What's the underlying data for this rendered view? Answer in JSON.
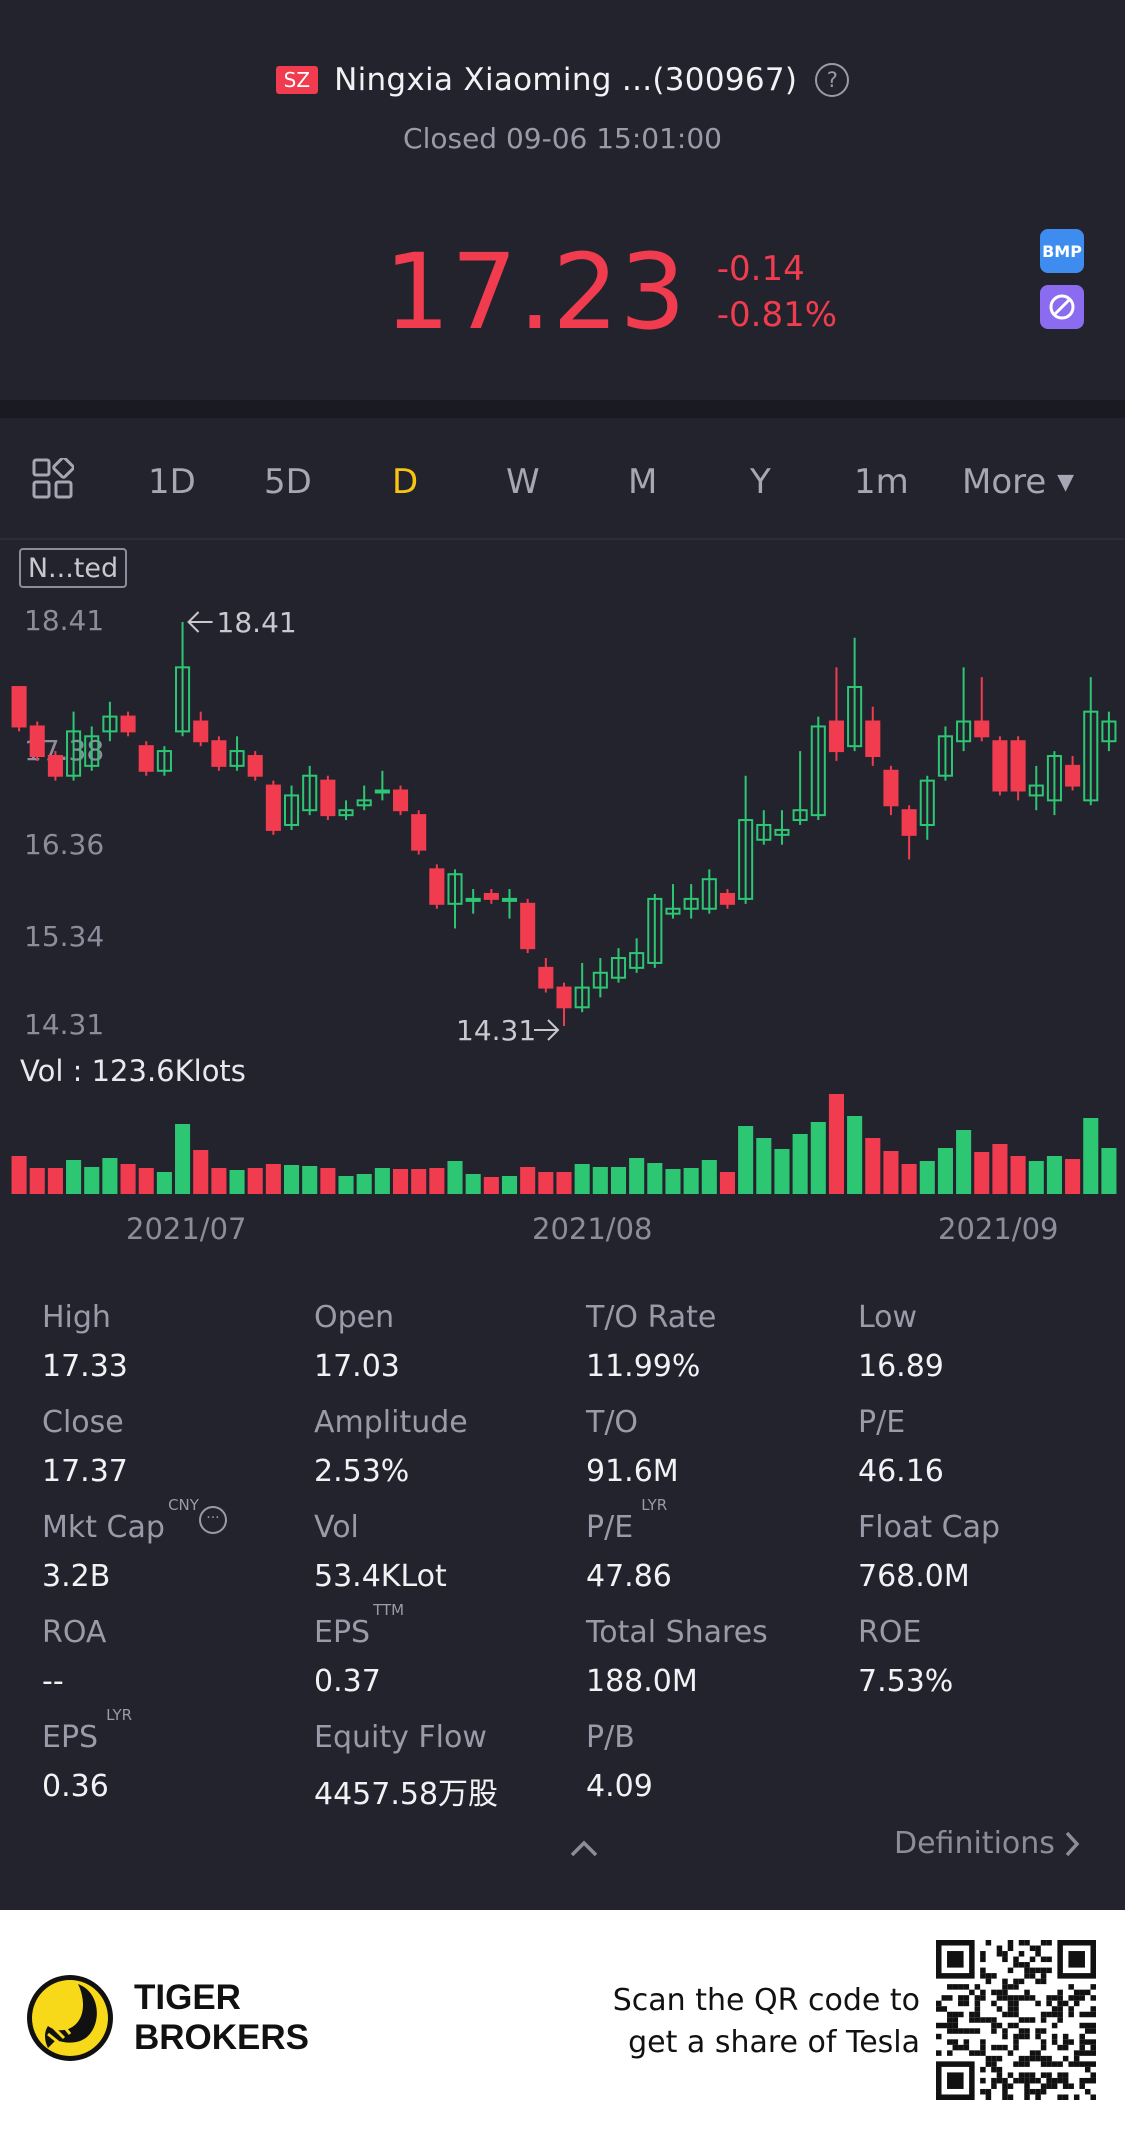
{
  "header": {
    "exchange_badge": "SZ",
    "stock_name": "Ningxia Xiaoming ...(300967)",
    "status": "Closed 09-06 15:01:00",
    "price": "17.23",
    "change": "-0.14",
    "change_pct": "-0.81%",
    "side_icon_1": "BMP",
    "accent_down_color": "#f03c4e",
    "accent_up_color": "#2dc774"
  },
  "tabs": {
    "items": [
      "1D",
      "5D",
      "D",
      "W",
      "M",
      "Y",
      "1m"
    ],
    "active": "D",
    "more": "More"
  },
  "chart": {
    "indicator_badge": "N...ted",
    "y_ticks": [
      "18.41",
      "17.38",
      "16.36",
      "15.34",
      "14.31"
    ],
    "high_marker": "18.41",
    "low_marker": "14.31",
    "volume_label": "Vol  : 123.6Klots",
    "dates": [
      "2021/07",
      "2021/08",
      "2021/09"
    ]
  },
  "chart_data": {
    "type": "candlestick",
    "y_range": [
      14.31,
      18.41
    ],
    "candles": [
      {
        "o": 17.75,
        "c": 17.35,
        "h": 17.75,
        "l": 17.3
      },
      {
        "o": 17.35,
        "c": 17.05,
        "h": 17.4,
        "l": 17.0
      },
      {
        "o": 17.05,
        "c": 16.85,
        "h": 17.1,
        "l": 16.8
      },
      {
        "o": 16.85,
        "c": 17.3,
        "h": 17.5,
        "l": 16.8
      },
      {
        "o": 16.95,
        "c": 17.25,
        "h": 17.35,
        "l": 16.9
      },
      {
        "o": 17.3,
        "c": 17.45,
        "h": 17.6,
        "l": 17.2
      },
      {
        "o": 17.45,
        "c": 17.3,
        "h": 17.5,
        "l": 17.25
      },
      {
        "o": 17.15,
        "c": 16.9,
        "h": 17.2,
        "l": 16.85
      },
      {
        "o": 16.9,
        "c": 17.1,
        "h": 17.15,
        "l": 16.85
      },
      {
        "o": 17.3,
        "c": 17.95,
        "h": 18.41,
        "l": 17.25
      },
      {
        "o": 17.4,
        "c": 17.2,
        "h": 17.5,
        "l": 17.15
      },
      {
        "o": 17.2,
        "c": 16.95,
        "h": 17.25,
        "l": 16.9
      },
      {
        "o": 16.95,
        "c": 17.1,
        "h": 17.25,
        "l": 16.9
      },
      {
        "o": 17.05,
        "c": 16.85,
        "h": 17.1,
        "l": 16.8
      },
      {
        "o": 16.75,
        "c": 16.3,
        "h": 16.8,
        "l": 16.25
      },
      {
        "o": 16.35,
        "c": 16.65,
        "h": 16.75,
        "l": 16.3
      },
      {
        "o": 16.5,
        "c": 16.85,
        "h": 16.95,
        "l": 16.45
      },
      {
        "o": 16.8,
        "c": 16.45,
        "h": 16.85,
        "l": 16.4
      },
      {
        "o": 16.45,
        "c": 16.5,
        "h": 16.6,
        "l": 16.4
      },
      {
        "o": 16.55,
        "c": 16.6,
        "h": 16.75,
        "l": 16.5
      },
      {
        "o": 16.7,
        "c": 16.7,
        "h": 16.9,
        "l": 16.6
      },
      {
        "o": 16.7,
        "c": 16.5,
        "h": 16.75,
        "l": 16.45
      },
      {
        "o": 16.45,
        "c": 16.1,
        "h": 16.5,
        "l": 16.05
      },
      {
        "o": 15.9,
        "c": 15.55,
        "h": 15.95,
        "l": 15.5
      },
      {
        "o": 15.55,
        "c": 15.85,
        "h": 15.9,
        "l": 15.3
      },
      {
        "o": 15.6,
        "c": 15.6,
        "h": 15.7,
        "l": 15.45
      },
      {
        "o": 15.65,
        "c": 15.6,
        "h": 15.7,
        "l": 15.55
      },
      {
        "o": 15.6,
        "c": 15.6,
        "h": 15.7,
        "l": 15.4
      },
      {
        "o": 15.55,
        "c": 15.1,
        "h": 15.6,
        "l": 15.05
      },
      {
        "o": 14.9,
        "c": 14.7,
        "h": 15.0,
        "l": 14.65
      },
      {
        "o": 14.7,
        "c": 14.5,
        "h": 14.75,
        "l": 14.31
      },
      {
        "o": 14.5,
        "c": 14.7,
        "h": 14.95,
        "l": 14.45
      },
      {
        "o": 14.7,
        "c": 14.85,
        "h": 15.0,
        "l": 14.6
      },
      {
        "o": 14.8,
        "c": 15.0,
        "h": 15.1,
        "l": 14.75
      },
      {
        "o": 14.9,
        "c": 15.05,
        "h": 15.2,
        "l": 14.85
      },
      {
        "o": 14.95,
        "c": 15.6,
        "h": 15.65,
        "l": 14.9
      },
      {
        "o": 15.45,
        "c": 15.5,
        "h": 15.75,
        "l": 15.4
      },
      {
        "o": 15.5,
        "c": 15.6,
        "h": 15.75,
        "l": 15.4
      },
      {
        "o": 15.5,
        "c": 15.8,
        "h": 15.9,
        "l": 15.45
      },
      {
        "o": 15.65,
        "c": 15.55,
        "h": 15.7,
        "l": 15.5
      },
      {
        "o": 15.6,
        "c": 16.4,
        "h": 16.85,
        "l": 15.55
      },
      {
        "o": 16.2,
        "c": 16.35,
        "h": 16.5,
        "l": 16.15
      },
      {
        "o": 16.25,
        "c": 16.3,
        "h": 16.5,
        "l": 16.15
      },
      {
        "o": 16.4,
        "c": 16.5,
        "h": 17.1,
        "l": 16.35
      },
      {
        "o": 16.45,
        "c": 17.35,
        "h": 17.45,
        "l": 16.4
      },
      {
        "o": 17.4,
        "c": 17.1,
        "h": 17.95,
        "l": 17.0
      },
      {
        "o": 17.15,
        "c": 17.75,
        "h": 18.25,
        "l": 17.1
      },
      {
        "o": 17.4,
        "c": 17.05,
        "h": 17.55,
        "l": 16.95
      },
      {
        "o": 16.9,
        "c": 16.55,
        "h": 16.95,
        "l": 16.45
      },
      {
        "o": 16.5,
        "c": 16.25,
        "h": 16.55,
        "l": 16.0
      },
      {
        "o": 16.35,
        "c": 16.8,
        "h": 16.85,
        "l": 16.2
      },
      {
        "o": 16.85,
        "c": 17.25,
        "h": 17.35,
        "l": 16.8
      },
      {
        "o": 17.2,
        "c": 17.4,
        "h": 17.95,
        "l": 17.1
      },
      {
        "o": 17.4,
        "c": 17.25,
        "h": 17.85,
        "l": 17.2
      },
      {
        "o": 17.2,
        "c": 16.7,
        "h": 17.25,
        "l": 16.65
      },
      {
        "o": 17.2,
        "c": 16.7,
        "h": 17.25,
        "l": 16.6
      },
      {
        "o": 16.65,
        "c": 16.75,
        "h": 16.95,
        "l": 16.5
      },
      {
        "o": 16.6,
        "c": 17.05,
        "h": 17.1,
        "l": 16.45
      },
      {
        "o": 16.95,
        "c": 16.75,
        "h": 17.05,
        "l": 16.7
      },
      {
        "o": 16.6,
        "c": 17.5,
        "h": 17.85,
        "l": 16.55
      },
      {
        "o": 17.2,
        "c": 17.4,
        "h": 17.5,
        "l": 17.1
      }
    ],
    "volume_max": 123.6
  },
  "stats": [
    {
      "label": "High",
      "value": "17.33",
      "sup": ""
    },
    {
      "label": "Open",
      "value": "17.03",
      "sup": ""
    },
    {
      "label": "T/O Rate",
      "value": "11.99%",
      "sup": ""
    },
    {
      "label": "Low",
      "value": "16.89",
      "sup": ""
    },
    {
      "label": "Close",
      "value": "17.37",
      "sup": ""
    },
    {
      "label": "Amplitude",
      "value": "2.53%",
      "sup": ""
    },
    {
      "label": "T/O",
      "value": "91.6M",
      "sup": ""
    },
    {
      "label": "P/E",
      "value": "46.16",
      "sup": ""
    },
    {
      "label": "Mkt Cap",
      "value": "3.2B",
      "sup": "CNY"
    },
    {
      "label": "Vol",
      "value": "53.4KLot",
      "sup": ""
    },
    {
      "label": "P/E",
      "value": "47.86",
      "sup": "LYR"
    },
    {
      "label": "Float Cap",
      "value": "768.0M",
      "sup": ""
    },
    {
      "label": "ROA",
      "value": "--",
      "sup": ""
    },
    {
      "label": "EPS",
      "value": "0.37",
      "sup": "TTM"
    },
    {
      "label": "Total Shares",
      "value": "188.0M",
      "sup": ""
    },
    {
      "label": "ROE",
      "value": "7.53%",
      "sup": ""
    },
    {
      "label": "EPS",
      "value": "0.36",
      "sup": "LYR"
    },
    {
      "label": "Equity Flow",
      "value": "4457.58万股",
      "sup": ""
    },
    {
      "label": "P/B",
      "value": "4.09",
      "sup": ""
    }
  ],
  "definitions_link": "Definitions",
  "footer": {
    "brand_line1": "TIGER",
    "brand_line2": "BROKERS",
    "promo_line1": "Scan the QR code to",
    "promo_line2": "get a share of Tesla"
  }
}
